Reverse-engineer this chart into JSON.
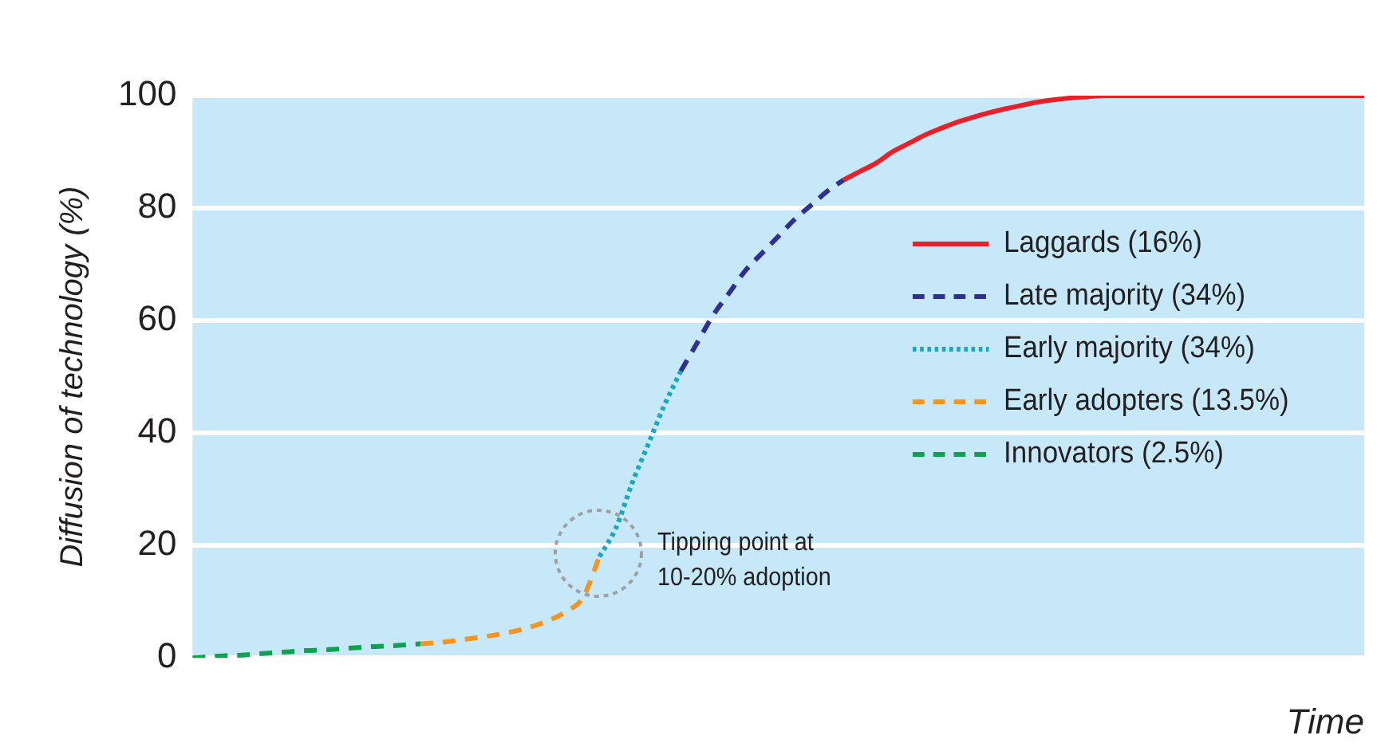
{
  "chart_data": {
    "type": "line",
    "xlabel": "Time",
    "ylabel": "Diffusion of technology (%)",
    "categories": [
      null,
      null,
      null,
      null,
      null,
      null,
      null,
      null,
      null,
      null,
      null,
      null,
      null,
      null,
      null,
      null,
      null,
      null,
      null,
      null,
      null,
      null,
      null,
      null,
      null,
      null,
      null,
      null,
      null,
      null,
      null,
      null,
      null,
      null,
      null,
      null,
      null,
      null,
      null,
      null,
      null,
      null,
      null,
      null,
      null,
      null,
      null,
      null,
      null,
      null,
      null,
      null,
      null,
      null,
      null,
      null,
      null,
      null,
      null,
      null,
      null,
      null,
      null,
      null,
      null,
      null,
      null,
      null,
      null,
      null,
      null,
      null,
      null
    ],
    "series": [
      {
        "name": "Laggards (16%)",
        "color": "#e8202a",
        "line_style": "solid",
        "values": [
          null,
          null,
          null,
          null,
          null,
          null,
          null,
          null,
          null,
          null,
          null,
          null,
          null,
          null,
          null,
          null,
          null,
          null,
          null,
          null,
          null,
          null,
          null,
          null,
          null,
          null,
          null,
          null,
          null,
          null,
          null,
          null,
          null,
          null,
          null,
          null,
          null,
          null,
          null,
          null,
          85,
          86.5,
          88,
          90,
          91.5,
          93,
          94.2,
          95.3,
          96.2,
          97,
          97.7,
          98.3,
          98.9,
          99.3,
          99.6,
          99.8,
          100,
          100,
          100,
          100,
          100,
          100,
          100,
          100,
          100,
          100,
          100,
          100,
          100,
          100,
          100,
          100,
          100
        ]
      },
      {
        "name": "Late majority (34%)",
        "color": "#2e3192",
        "line_style": "dashed",
        "values": [
          null,
          null,
          null,
          null,
          null,
          null,
          null,
          null,
          null,
          null,
          null,
          null,
          null,
          null,
          null,
          null,
          null,
          null,
          null,
          null,
          null,
          null,
          null,
          null,
          null,
          null,
          null,
          null,
          null,
          null,
          51,
          56,
          61,
          65,
          69,
          72,
          75,
          78,
          80.5,
          83,
          85,
          null,
          null,
          null,
          null,
          null,
          null,
          null,
          null,
          null,
          null,
          null,
          null,
          null,
          null,
          null,
          null,
          null,
          null,
          null,
          null,
          null,
          null,
          null,
          null,
          null,
          null,
          null,
          null,
          null,
          null,
          null,
          null
        ]
      },
      {
        "name": "Early majority (34%)",
        "color": "#1aa7c0",
        "line_style": "dotted",
        "values": [
          null,
          null,
          null,
          null,
          null,
          null,
          null,
          null,
          null,
          null,
          null,
          null,
          null,
          null,
          null,
          null,
          null,
          null,
          null,
          null,
          null,
          null,
          null,
          null,
          null,
          18,
          23,
          31,
          38,
          45,
          51,
          null,
          null,
          null,
          null,
          null,
          null,
          null,
          null,
          null,
          null,
          null,
          null,
          null,
          null,
          null,
          null,
          null,
          null,
          null,
          null,
          null,
          null,
          null,
          null,
          null,
          null,
          null,
          null,
          null,
          null,
          null,
          null,
          null,
          null,
          null,
          null,
          null,
          null,
          null,
          null,
          null,
          null
        ]
      },
      {
        "name": "Early adopters (13.5%)",
        "color": "#f7941d",
        "line_style": "dashed",
        "values": [
          null,
          null,
          null,
          null,
          null,
          null,
          null,
          null,
          null,
          null,
          null,
          null,
          null,
          null,
          2.5,
          2.7,
          3,
          3.4,
          3.8,
          4.3,
          4.9,
          5.7,
          6.8,
          8.3,
          10.8,
          18,
          null,
          null,
          null,
          null,
          null,
          null,
          null,
          null,
          null,
          null,
          null,
          null,
          null,
          null,
          null,
          null,
          null,
          null,
          null,
          null,
          null,
          null,
          null,
          null,
          null,
          null,
          null,
          null,
          null,
          null,
          null,
          null,
          null,
          null,
          null,
          null,
          null,
          null,
          null,
          null,
          null,
          null,
          null,
          null,
          null,
          null,
          null
        ]
      },
      {
        "name": "Innovators (2.5%)",
        "color": "#10a050",
        "line_style": "dashed",
        "values": [
          0,
          0.2,
          0.4,
          0.5,
          0.7,
          0.9,
          1.1,
          1.3,
          1.4,
          1.6,
          1.8,
          2,
          2.1,
          2.3,
          2.5,
          null,
          null,
          null,
          null,
          null,
          null,
          null,
          null,
          null,
          null,
          null,
          null,
          null,
          null,
          null,
          null,
          null,
          null,
          null,
          null,
          null,
          null,
          null,
          null,
          null,
          null,
          null,
          null,
          null,
          null,
          null,
          null,
          null,
          null,
          null,
          null,
          null,
          null,
          null,
          null,
          null,
          null,
          null,
          null,
          null,
          null,
          null,
          null,
          null,
          null,
          null,
          null,
          null,
          null,
          null,
          null,
          null,
          null
        ]
      }
    ],
    "ylim": [
      0,
      100
    ],
    "yticks": [
      0,
      20,
      40,
      60,
      80,
      100
    ],
    "grid": "y",
    "legend": "right",
    "tick_labels": "y",
    "marker": "none",
    "annotations": [
      "Tipping point at\n10-20% adoption"
    ]
  }
}
